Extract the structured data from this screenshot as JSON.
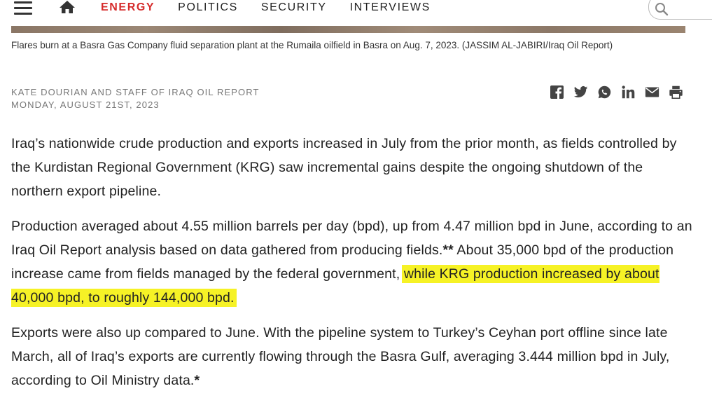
{
  "nav": {
    "items": [
      {
        "label": "ENERGY",
        "active": true
      },
      {
        "label": "POLITICS",
        "active": false
      },
      {
        "label": "SECURITY",
        "active": false
      },
      {
        "label": "INTERVIEWS",
        "active": false
      }
    ],
    "menu_icon": "hamburger-icon",
    "home_icon": "home-icon",
    "search_icon": "search-icon",
    "accent_color": "#d62b2b"
  },
  "caption": "Flares burn at a Basra Gas Company fluid separation plant at the Rumaila oilfield in Basra on Aug. 7, 2023. (JASSIM AL-JABIRI/Iraq Oil Report)",
  "byline": {
    "author": "KATE DOURIAN AND STAFF OF IRAQ OIL REPORT",
    "date": "MONDAY, AUGUST 21ST, 2023"
  },
  "share_icons": [
    "facebook-icon",
    "twitter-icon",
    "whatsapp-icon",
    "linkedin-icon",
    "email-icon",
    "print-icon"
  ],
  "article": {
    "p1": "Iraq’s nationwide crude production and exports increased in July from the prior month, as fields controlled by the Kurdistan Regional Government (KRG) saw incremental gains despite the ongoing shutdown of the northern export pipeline.",
    "p2_a": "Production averaged about 4.55 million barrels per day (bpd), up from 4.47 million bpd in June, according to an Iraq Oil Report analysis based on data gathered from producing fields.",
    "p2_mark": "**",
    "p2_b": " About 35,000 bpd of the production increase came from fields managed by the federal government,",
    "p2_highlight": "while KRG production increased by about 40,000 bpd, to roughly 144,000 bpd.",
    "p3_a": "Exports were also up compared to June. With the pipeline system to Turkey’s Ceyhan port offline since late March, all of Iraq’s exports are currently flowing through the Basra Gulf, averaging 3.444 million bpd in July, according to Oil Ministry data.",
    "p3_mark": "*"
  },
  "highlight_color": "#f6f226"
}
